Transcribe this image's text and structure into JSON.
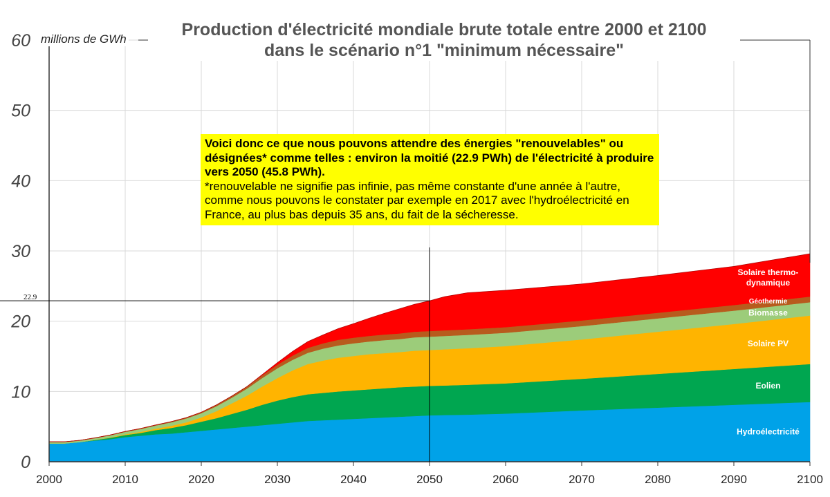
{
  "chart_data": {
    "type": "area",
    "stacked": true,
    "title": "Production d'électricité mondiale brute totale entre 2000 et 2100 dans le scénario n°1 \"minimum nécessaire\"",
    "title_lines": [
      "Production d'électricité mondiale brute totale entre 2000 et 2100",
      "dans le scénario n°1 \"minimum nécessaire\""
    ],
    "ylabel": "millions de GWh",
    "xlim": [
      2000,
      2100
    ],
    "ylim": [
      0,
      60
    ],
    "xticks": [
      2000,
      2010,
      2020,
      2030,
      2040,
      2050,
      2060,
      2070,
      2080,
      2090,
      2100
    ],
    "yticks": [
      0,
      10,
      20,
      30,
      40,
      50,
      60
    ],
    "grid": true,
    "x": [
      2000,
      2002,
      2004,
      2006,
      2008,
      2010,
      2012,
      2014,
      2016,
      2018,
      2020,
      2022,
      2024,
      2026,
      2028,
      2030,
      2032,
      2034,
      2036,
      2038,
      2040,
      2042,
      2044,
      2046,
      2048,
      2050,
      2052,
      2055,
      2060,
      2070,
      2080,
      2090,
      2100
    ],
    "series": [
      {
        "name": "Hydroélectricité",
        "color": "#00a2e8",
        "values": [
          2.6,
          2.6,
          2.8,
          3.0,
          3.2,
          3.5,
          3.7,
          3.9,
          4.0,
          4.2,
          4.4,
          4.6,
          4.8,
          5.0,
          5.2,
          5.4,
          5.6,
          5.8,
          5.9,
          6.0,
          6.1,
          6.2,
          6.3,
          6.4,
          6.5,
          6.6,
          6.65,
          6.7,
          6.85,
          7.3,
          7.7,
          8.1,
          8.5
        ]
      },
      {
        "name": "Eolien",
        "color": "#00a650",
        "values": [
          0.0,
          0.0,
          0.0,
          0.1,
          0.2,
          0.3,
          0.4,
          0.6,
          0.8,
          1.0,
          1.3,
          1.6,
          2.0,
          2.4,
          2.9,
          3.3,
          3.6,
          3.8,
          3.9,
          4.0,
          4.05,
          4.1,
          4.15,
          4.2,
          4.2,
          4.2,
          4.2,
          4.25,
          4.3,
          4.5,
          4.8,
          5.1,
          5.4
        ]
      },
      {
        "name": "Solaire PV",
        "color": "#ffb400",
        "values": [
          0.0,
          0.0,
          0.0,
          0.0,
          0.05,
          0.1,
          0.15,
          0.2,
          0.3,
          0.4,
          0.6,
          1.0,
          1.5,
          2.0,
          2.6,
          3.2,
          3.8,
          4.3,
          4.6,
          4.8,
          4.9,
          5.0,
          5.0,
          5.0,
          5.1,
          5.1,
          5.15,
          5.2,
          5.3,
          5.6,
          6.0,
          6.4,
          6.9
        ]
      },
      {
        "name": "Biomasse",
        "color": "#9ccc7a",
        "values": [
          0.2,
          0.2,
          0.2,
          0.25,
          0.3,
          0.35,
          0.4,
          0.45,
          0.5,
          0.55,
          0.6,
          0.7,
          0.8,
          1.0,
          1.2,
          1.4,
          1.5,
          1.6,
          1.7,
          1.75,
          1.8,
          1.8,
          1.85,
          1.85,
          1.9,
          1.9,
          1.9,
          1.9,
          1.9,
          1.9,
          1.9,
          1.9,
          1.9
        ]
      },
      {
        "name": "Géothermie",
        "color": "#b85b1d",
        "values": [
          0.05,
          0.05,
          0.05,
          0.05,
          0.06,
          0.07,
          0.08,
          0.09,
          0.1,
          0.12,
          0.15,
          0.2,
          0.25,
          0.3,
          0.4,
          0.5,
          0.6,
          0.7,
          0.75,
          0.8,
          0.8,
          0.8,
          0.8,
          0.8,
          0.8,
          0.8,
          0.8,
          0.8,
          0.8,
          0.8,
          0.8,
          0.8,
          0.8
        ]
      },
      {
        "name": "Solaire thermo-dynamique",
        "color": "#ff0000",
        "values": [
          0.0,
          0.0,
          0.0,
          0.0,
          0.0,
          0.0,
          0.0,
          0.0,
          0.0,
          0.0,
          0.0,
          0.0,
          0.0,
          0.0,
          0.1,
          0.3,
          0.6,
          0.9,
          1.2,
          1.6,
          2.0,
          2.5,
          3.0,
          3.5,
          3.9,
          4.3,
          4.8,
          5.2,
          5.25,
          5.2,
          5.3,
          5.5,
          6.1
        ]
      }
    ],
    "series_labels": [
      {
        "series": "Hydroélectricité",
        "text": [
          "Hydroélectricité"
        ],
        "at": [
          2094.5,
          4.3
        ]
      },
      {
        "series": "Eolien",
        "text": [
          "Eolien"
        ],
        "at": [
          2094.5,
          10.8
        ]
      },
      {
        "series": "Solaire PV",
        "text": [
          "Solaire PV"
        ],
        "at": [
          2094.5,
          16.8
        ]
      },
      {
        "series": "Biomasse",
        "text": [
          "Biomasse"
        ],
        "at": [
          2094.5,
          21.2
        ]
      },
      {
        "series": "Géothermie",
        "text": [
          "Géothermie"
        ],
        "at": [
          2094.5,
          22.9
        ]
      },
      {
        "series": "Solaire thermo-dynamique",
        "text": [
          "Solaire thermo-",
          "dynamique"
        ],
        "at": [
          2094.5,
          26.2
        ]
      }
    ],
    "reference": {
      "x": 2050,
      "y": 22.9,
      "label": "22.9",
      "vline_top": 30.5
    },
    "annotation": {
      "bold_text": "Voici donc ce que nous pouvons attendre des énergies \"renouvelables\" ou désignées* comme telles : environ la moitié (22.9 PWh) de l'électricité à produire vers 2050 (45.8 PWh).",
      "text": "*renouvelable ne signifie pas infinie, pas même constante d'une année à l'autre, comme nous pouvons le constater par exemple en 2017 avec l'hydroélectricité en France, au plus bas depuis 35 ans, du fait de la sécheresse.",
      "background": "#ffff00"
    }
  }
}
